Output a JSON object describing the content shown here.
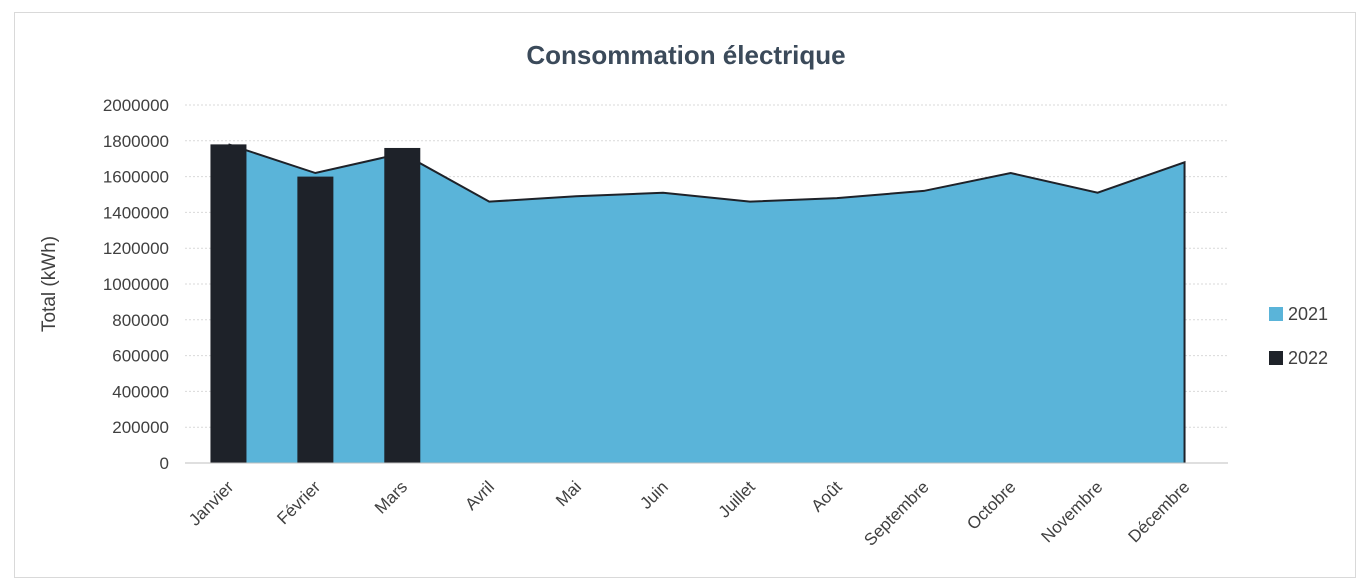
{
  "chart_data": {
    "type": "area",
    "title": "Consommation électrique",
    "xlabel": "",
    "ylabel": "Total (kWh)",
    "ylim": [
      0,
      2000000
    ],
    "yticks": [
      0,
      200000,
      400000,
      600000,
      800000,
      1000000,
      1200000,
      1400000,
      1600000,
      1800000,
      2000000
    ],
    "ytick_labels": [
      "0",
      "200000",
      "400000",
      "600000",
      "800000",
      "1000000",
      "1200000",
      "1400000",
      "1600000",
      "1800000",
      "2000000"
    ],
    "grid": true,
    "legend_position": "right",
    "categories": [
      "Janvier",
      "Février",
      "Mars",
      "Avril",
      "Mai",
      "Juin",
      "Juillet",
      "Août",
      "Septembre",
      "Octobre",
      "Novembre",
      "Décembre"
    ],
    "series": [
      {
        "name": "2021",
        "type": "area",
        "color": "#5ab4d9",
        "values": [
          1780000,
          1620000,
          1730000,
          1460000,
          1490000,
          1510000,
          1460000,
          1480000,
          1520000,
          1620000,
          1510000,
          1680000
        ]
      },
      {
        "name": "2022",
        "type": "bar",
        "color": "#1e2229",
        "values": [
          1780000,
          1600000,
          1760000,
          null,
          null,
          null,
          null,
          null,
          null,
          null,
          null,
          null
        ]
      }
    ]
  }
}
